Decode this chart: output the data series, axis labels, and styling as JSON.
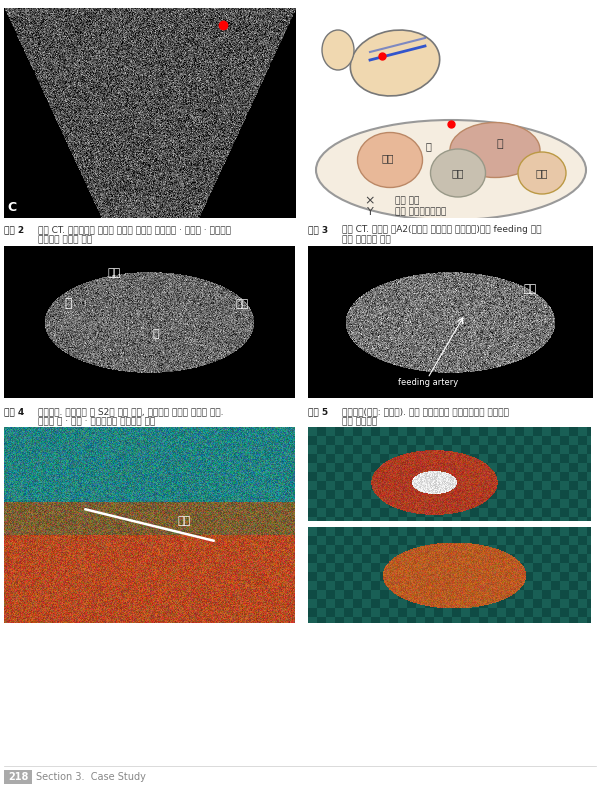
{
  "bg_color": "#ffffff",
  "page_number": "218",
  "section_text": "Section 3.  Case Study",
  "top_left_label": "C",
  "caption2_bold": "그림 2",
  "caption2_line1": "단순 CT. 좌상복부의 충실성 종양은 간좌엽 외측구역 · 위저부 · 비문으로",
  "caption2_line2": "둘러싸인 위치에 있다",
  "caption3_bold": "그림 3",
  "caption3_line1": "조영 CT. 종양은 간A2(간좌엽 외측구역 동맥분지)에서 feeding 받고",
  "caption3_line2": "있는 다혈관성 종양",
  "caption4_bold": "그림 4",
  "caption4_line1": "수술소견. 간종양은 간 S2에 붙어 있고, 외측으로 돌출된 것처럼 있다.",
  "caption4_line2": "주위의 위 · 비장 · 횡격막과는 분리되어 있다",
  "caption5_bold": "그림 5",
  "caption5_line1": "적출표본(하단: 절단면). 황색 결절성으로 육안적으로도 간세포암",
  "caption5_line2": "이라 생각된다",
  "label_kan": "간",
  "label_wi": "위",
  "label_simjang": "심장",
  "label_bisang": "비장",
  "label_jongyang": "종양",
  "label_left_thoracic": "좌측 흉강",
  "label_left_subcostal": "좌측 늑궁하주사단면",
  "label_feeding": "feeding artery",
  "caption_bold_color": "#1a1a1a",
  "caption_text_color": "#333333",
  "diagram_liver_color": "#d4a898",
  "diagram_tumor_color": "#c8c0b0",
  "diagram_spleen_color": "#e8c8a8",
  "diagram_heart_color": "#e8b898",
  "diagram_bg_color": "#f5ede0",
  "page_num_bg": "#aaaaaa",
  "section_color": "#888888",
  "red_dot": "#ff0000",
  "white": "#ffffff",
  "dark_bg": "#0a0a0a",
  "footer_line_color": "#cccccc"
}
